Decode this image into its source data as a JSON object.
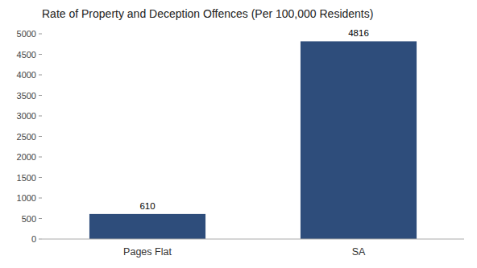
{
  "chart_data": {
    "type": "bar",
    "title": "Rate of Property and Deception Offences (Per 100,000 Residents)",
    "categories": [
      "Pages Flat",
      "SA"
    ],
    "values": [
      610,
      4816
    ],
    "colors": [
      "#2e4d7b",
      "#2e4d7b"
    ],
    "ylim": [
      0,
      5000
    ],
    "yticks": [
      0,
      500,
      1000,
      1500,
      2000,
      2500,
      3000,
      3500,
      4000,
      4500,
      5000
    ],
    "grid": false,
    "data_labels": true
  }
}
